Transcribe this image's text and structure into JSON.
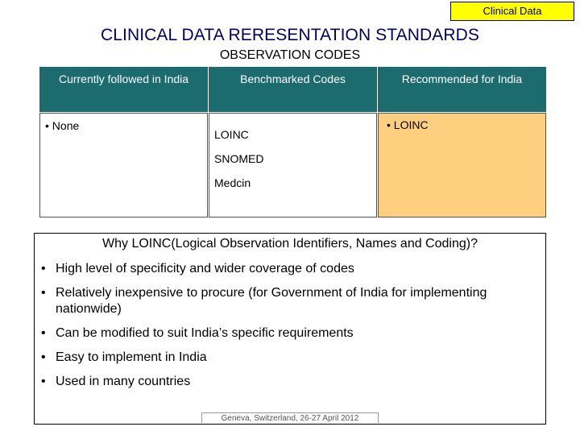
{
  "tag": "Clinical  Data",
  "title": "CLINICAL DATA RERESENTATION STANDARDS",
  "subtitle": "OBSERVATION CODES",
  "table": {
    "headers": [
      "Currently followed in India",
      "Benchmarked Codes",
      "Recommended for India"
    ],
    "col1": [
      "• None"
    ],
    "col2": [
      "LOINC",
      "SNOMED",
      "Medcin"
    ],
    "col3": [
      "• LOINC"
    ]
  },
  "box": {
    "heading": "Why LOINC(Logical Observation Identifiers, Names and Coding)?",
    "bullets": [
      "High level of specificity and wider coverage of codes",
      "Relatively inexpensive to procure (for Government of India for implementing nationwide)",
      "Can be modified to suit India’s specific requirements",
      "Easy to implement in India",
      "Used in many countries"
    ]
  },
  "footer": "Geneva, Switzerland, 26-27 April 2012",
  "colors": {
    "header_bg": "#1b6b6f",
    "recommend_bg": "#fdcf7e",
    "tag_bg": "#ffff00",
    "title": "#000060"
  }
}
